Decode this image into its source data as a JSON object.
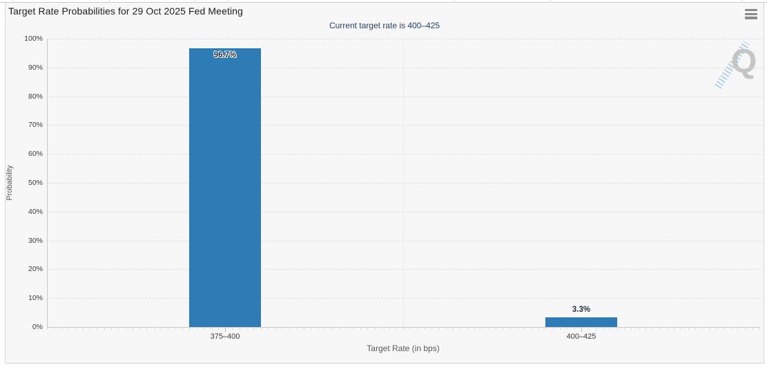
{
  "menu": {
    "icon": "hamburger-menu-icon"
  },
  "watermark": {
    "letter": "Q"
  },
  "chart_data": {
    "type": "bar",
    "title": "Target Rate Probabilities for 29 Oct 2025 Fed Meeting",
    "subtitle": "Current target rate is 400–425",
    "xlabel": "Target Rate (in bps)",
    "ylabel": "Probability",
    "categories": [
      "375–400",
      "400–425"
    ],
    "values": [
      96.7,
      3.3
    ],
    "value_labels": [
      "96.7%",
      "3.3%"
    ],
    "ylim": [
      0,
      100
    ],
    "ytick_step": 10,
    "ytick_labels": [
      "0%",
      "10%",
      "20%",
      "30%",
      "40%",
      "50%",
      "60%",
      "70%",
      "80%",
      "90%",
      "100%"
    ],
    "grid": "horizontal-dotted",
    "legend": "none",
    "colors": {
      "bar": "#2d7cb5",
      "bar_label": "#1b2a3e",
      "axis": "#c8c8c8",
      "panel_bg": "#f7f7f7",
      "subtitle_text": "#23406b"
    }
  }
}
